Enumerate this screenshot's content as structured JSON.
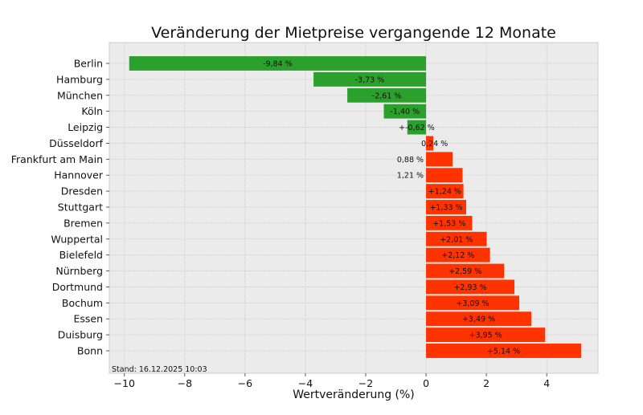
{
  "chart_data": {
    "type": "bar",
    "orientation": "horizontal",
    "title": "Veränderung der Mietpreise vergangende 12 Monate",
    "xlabel": "Wertveränderung (%)",
    "ylabel": "",
    "xlim": [
      -10.5,
      5.7
    ],
    "xticks": [
      -10,
      -8,
      -6,
      -4,
      -2,
      0,
      2,
      4
    ],
    "xtick_labels": [
      "−10",
      "−8",
      "−6",
      "−4",
      "−2",
      "0",
      "2",
      "4"
    ],
    "grid": true,
    "categories": [
      "Berlin",
      "Hamburg",
      "München",
      "Köln",
      "Leipzig",
      "Düsseldorf",
      "Frankfurt am Main",
      "Hannover",
      "Dresden",
      "Stuttgart",
      "Bremen",
      "Wuppertal",
      "Bielefeld",
      "Nürnberg",
      "Dortmund",
      "Bochum",
      "Essen",
      "Duisburg",
      "Bonn"
    ],
    "values": [
      -9.84,
      -3.73,
      -2.61,
      -1.4,
      -0.62,
      0.24,
      0.88,
      1.21,
      1.24,
      1.33,
      1.53,
      2.01,
      2.12,
      2.59,
      2.93,
      3.09,
      3.49,
      3.95,
      5.14
    ],
    "value_labels": [
      "-9,84 %",
      "-3,73 %",
      "-2,61 %",
      "-1,40 %",
      "+-0,62 %",
      "0,24 %",
      "0,88 %",
      "1,21 %",
      "+1,24 %",
      "+1,33 %",
      "+1,53 %",
      "+2,01 %",
      "+2,12 %",
      "+2,59 %",
      "+2,93 %",
      "+3,09 %",
      "+3,49 %",
      "+3,95 %",
      "+5,14 %"
    ],
    "colors": {
      "negative": "#2ca02c",
      "positive": "#ff3300"
    },
    "annotation": "Stand: 16.12.2025 10:03"
  }
}
